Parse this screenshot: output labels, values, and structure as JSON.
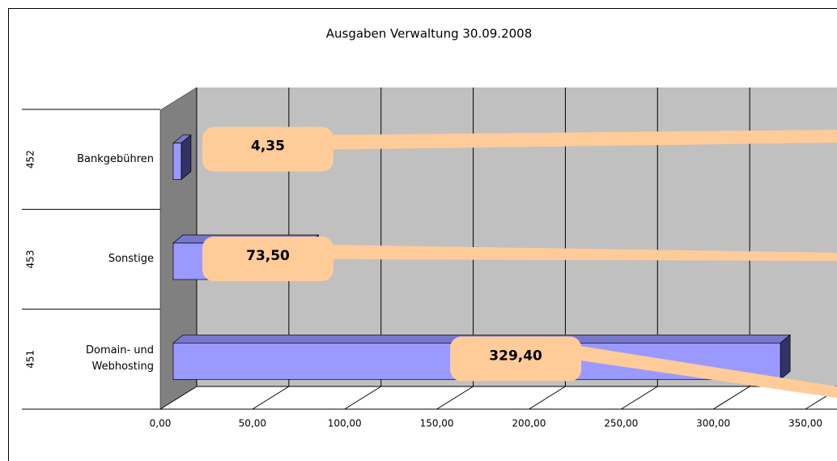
{
  "chart_data": {
    "type": "bar",
    "orientation": "horizontal",
    "three_d": true,
    "title": "Ausgaben Verwaltung 30.09.2008",
    "groups": [
      "452",
      "453",
      "451"
    ],
    "categories": [
      "Bankgebühren",
      "Sonstige",
      "Domain- und Webhosting"
    ],
    "values": [
      4.35,
      73.5,
      329.4
    ],
    "value_labels": [
      "4,35",
      "73,50",
      "329,40"
    ],
    "color": "#9999ff",
    "xlim": [
      0,
      350
    ],
    "xticks": [
      {
        "value": 0,
        "label": "0,00"
      },
      {
        "value": 50,
        "label": "50,00"
      },
      {
        "value": 100,
        "label": "100,00"
      },
      {
        "value": 150,
        "label": "150,00"
      },
      {
        "value": 200,
        "label": "200,00"
      },
      {
        "value": 250,
        "label": "250,00"
      },
      {
        "value": 300,
        "label": "300,00"
      },
      {
        "value": 350,
        "label": "350,00"
      }
    ],
    "grid": true
  }
}
